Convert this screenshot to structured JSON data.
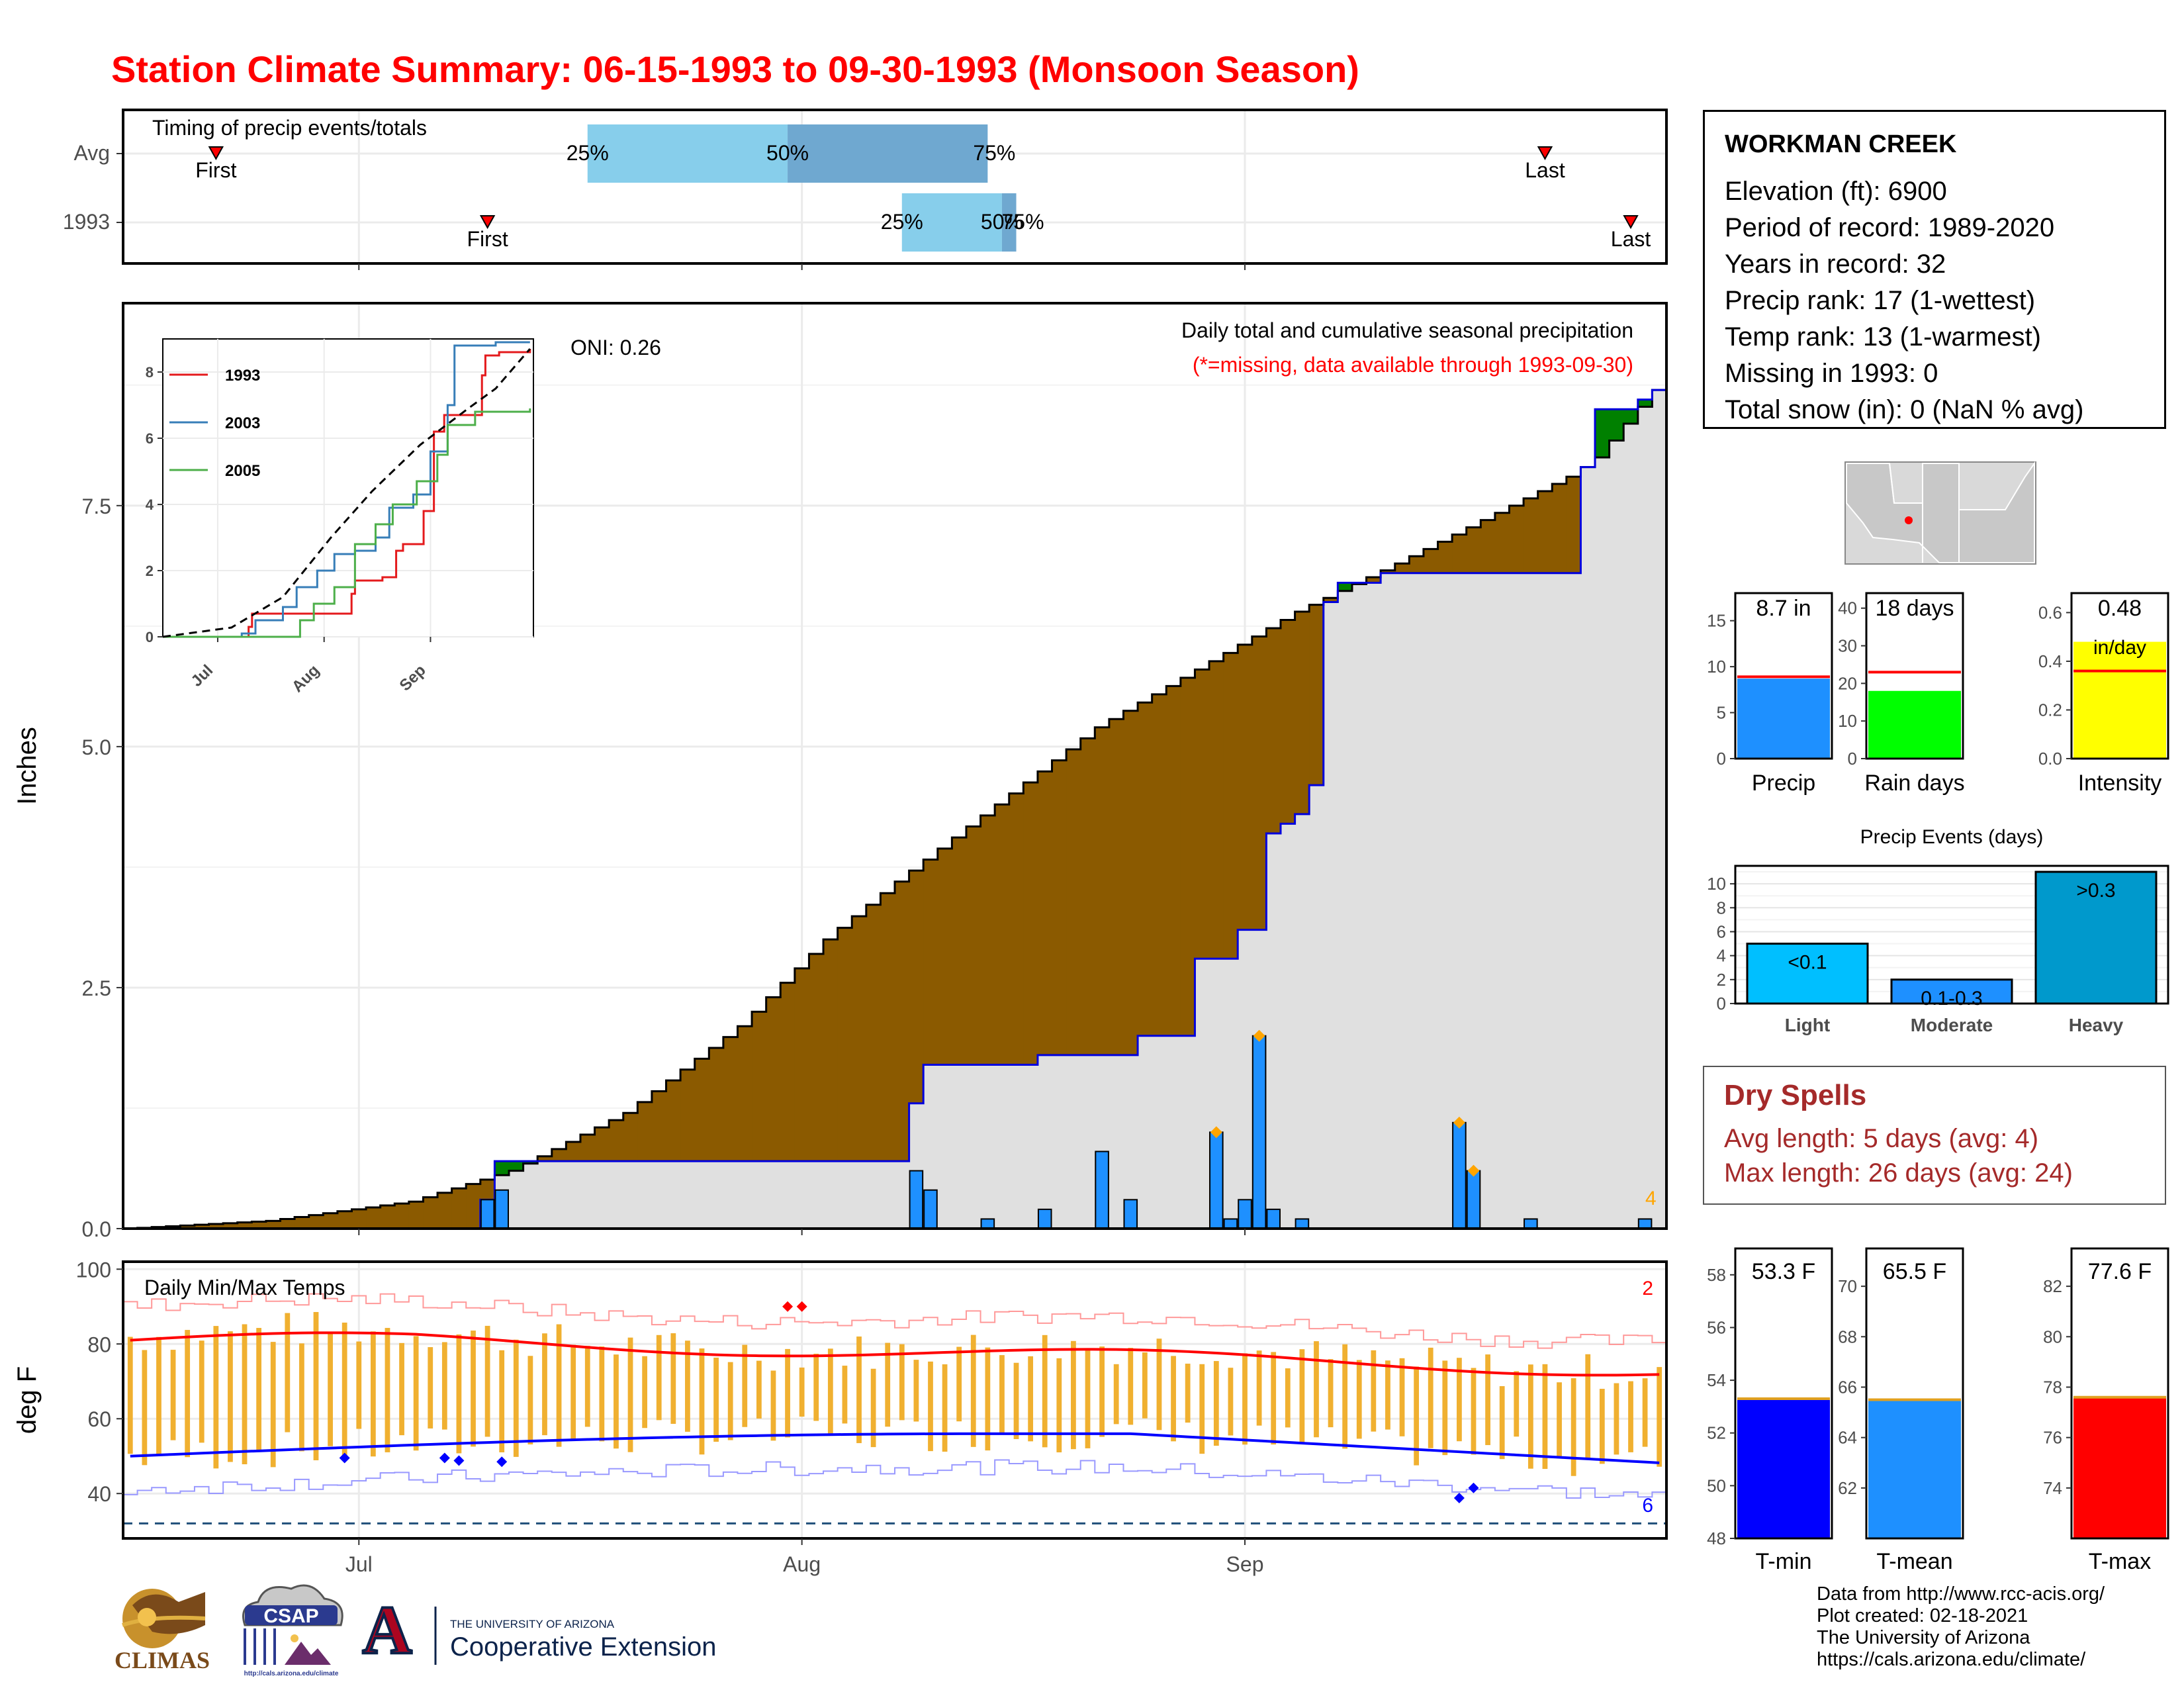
{
  "title": "Station Climate Summary: 06-15-1993 to 09-30-1993 (Monsoon Season)",
  "station": {
    "name": "WORKMAN CREEK",
    "lines": [
      "Elevation (ft): 6900",
      "Period of record: 1989-2020",
      "Years in record: 32",
      "Precip rank: 17 (1-wettest)",
      "Temp rank: 13 (1-warmest)",
      "Missing in 1993: 0",
      "Total snow (in): 0 (NaN % avg)"
    ]
  },
  "colors": {
    "title": "#ff0000",
    "above_avg_fill": "#008000",
    "below_avg_fill": "#8b5a00",
    "cum_area": "#e0e0e0",
    "daily_bar": "#1e90ff",
    "temp_bar": "#f0b030",
    "avg_max": "#ff0000",
    "avg_min": "#0000ff",
    "quartile_light": "#87ceeb",
    "quartile_dark": "#6fa8d0",
    "dry_spell": "#a52a2a"
  },
  "dry_spells": {
    "title": "Dry Spells",
    "avg": "Avg length: 5 days (avg: 4)",
    "max": "Max length: 26 days (avg: 24)"
  },
  "credits": [
    "Data from http://www.rcc-acis.org/",
    "Plot created: 02-18-2021",
    "The University of Arizona",
    "https://cals.arizona.edu/climate/"
  ],
  "logos": {
    "climas": "CLIMAS",
    "csap": "CSAP",
    "csap_url": "http://cals.arizona.edu/climate",
    "ua_line1": "THE UNIVERSITY OF ARIZONA",
    "ua_line2": "Cooperative Extension",
    "ua_letter": "A"
  },
  "chart_data": [
    {
      "name": "timing",
      "type": "bar",
      "title": "Timing of precip events/totals",
      "categories": [
        "Avg",
        "1993"
      ],
      "x_ticks": [
        "Jul",
        "Aug",
        "Sep"
      ],
      "rows": [
        {
          "label": "Avg",
          "first_label": "First",
          "last_label": "Last",
          "first": "1993-06-21",
          "q25": "1993-07-17",
          "q50": "1993-07-31",
          "q75": "1993-08-14",
          "last": "1993-09-22"
        },
        {
          "label": "1993",
          "first_label": "First",
          "last_label": "Last",
          "first": "1993-07-10",
          "q25": "1993-08-08",
          "q50": "1993-08-15",
          "q75": "1993-08-16",
          "last": "1993-09-28"
        }
      ],
      "quartile_labels": [
        "25%",
        "50%",
        "75%"
      ]
    },
    {
      "name": "precip",
      "type": "area",
      "title": "Daily total and cumulative seasonal precipitation",
      "subtitle": "(*=missing, data available through 1993-09-30)",
      "annotation": "ONI: 0.26",
      "ylabel": "Inches",
      "ylim": [
        0,
        9.6
      ],
      "y_ticks": [
        0.0,
        2.5,
        5.0,
        7.5
      ],
      "y_tick_labels": [
        "0.0",
        "2.5",
        "5.0",
        "7.5"
      ],
      "x_ticks": [
        "Jul",
        "Aug",
        "Sep"
      ],
      "corner_count": "4",
      "cumulative_1993": [
        [
          "1993-06-15",
          0
        ],
        [
          "1993-07-09",
          0
        ],
        [
          "1993-07-10",
          0.3
        ],
        [
          "1993-07-11",
          0.7
        ],
        [
          "1993-08-08",
          0.7
        ],
        [
          "1993-08-09",
          1.3
        ],
        [
          "1993-08-10",
          1.7
        ],
        [
          "1993-08-17",
          1.7
        ],
        [
          "1993-08-18",
          1.8
        ],
        [
          "1993-08-24",
          1.8
        ],
        [
          "1993-08-25",
          2.0
        ],
        [
          "1993-08-28",
          2.0
        ],
        [
          "1993-08-29",
          2.8
        ],
        [
          "1993-08-31",
          2.8
        ],
        [
          "1993-09-01",
          3.1
        ],
        [
          "1993-09-02",
          3.1
        ],
        [
          "1993-09-03",
          4.1
        ],
        [
          "1993-09-04",
          4.2
        ],
        [
          "1993-09-05",
          4.3
        ],
        [
          "1993-09-06",
          4.6
        ],
        [
          "1993-09-07",
          6.5
        ],
        [
          "1993-09-08",
          6.7
        ],
        [
          "1993-09-10",
          6.7
        ],
        [
          "1993-09-11",
          6.8
        ],
        [
          "1993-09-24",
          6.8
        ],
        [
          "1993-09-25",
          7.9
        ],
        [
          "1993-09-26",
          8.5
        ],
        [
          "1993-09-28",
          8.5
        ],
        [
          "1993-09-29",
          8.6
        ],
        [
          "1993-09-30",
          8.7
        ]
      ],
      "average_cumulative": [
        [
          "1993-06-15",
          0.0
        ],
        [
          "1993-06-25",
          0.08
        ],
        [
          "1993-07-05",
          0.28
        ],
        [
          "1993-07-12",
          0.6
        ],
        [
          "1993-07-20",
          1.2
        ],
        [
          "1993-07-28",
          2.1
        ],
        [
          "1993-08-03",
          3.0
        ],
        [
          "1993-08-08",
          3.6
        ],
        [
          "1993-08-15",
          4.4
        ],
        [
          "1993-08-22",
          5.2
        ],
        [
          "1993-08-29",
          5.8
        ],
        [
          "1993-09-05",
          6.4
        ],
        [
          "1993-09-12",
          6.9
        ],
        [
          "1993-09-20",
          7.5
        ],
        [
          "1993-09-24",
          7.8
        ],
        [
          "1993-09-26",
          8.0
        ],
        [
          "1993-09-30",
          8.7
        ]
      ],
      "daily_1993": [
        [
          "1993-07-10",
          0.3
        ],
        [
          "1993-07-11",
          0.4
        ],
        [
          "1993-08-09",
          0.6
        ],
        [
          "1993-08-10",
          0.4
        ],
        [
          "1993-08-14",
          0.1
        ],
        [
          "1993-08-18",
          0.2
        ],
        [
          "1993-08-22",
          0.8
        ],
        [
          "1993-08-24",
          0.3
        ],
        [
          "1993-08-30",
          1.0
        ],
        [
          "1993-08-31",
          0.1
        ],
        [
          "1993-09-01",
          0.3
        ],
        [
          "1993-09-02",
          2.0
        ],
        [
          "1993-09-03",
          0.2
        ],
        [
          "1993-09-05",
          0.1
        ],
        [
          "1993-09-16",
          1.1
        ],
        [
          "1993-09-17",
          0.6
        ],
        [
          "1993-09-21",
          0.1
        ],
        [
          "1993-09-29",
          0.1
        ]
      ],
      "record_day_markers": [
        "1993-08-30",
        "1993-09-02",
        "1993-09-16",
        "1993-09-17"
      ]
    },
    {
      "name": "inset",
      "type": "line",
      "x_ticks": [
        "Jul",
        "Aug",
        "Sep"
      ],
      "y_ticks": [
        0,
        2,
        4,
        6,
        8
      ],
      "ylim": [
        0,
        9
      ],
      "series": [
        {
          "name": "1993",
          "color": "#e41a1c",
          "values": [
            [
              "1993-06-15",
              0
            ],
            [
              "1993-07-10",
              0.3
            ],
            [
              "1993-07-11",
              0.7
            ],
            [
              "1993-08-09",
              1.3
            ],
            [
              "1993-08-10",
              1.7
            ],
            [
              "1993-08-18",
              1.8
            ],
            [
              "1993-08-22",
              2.6
            ],
            [
              "1993-08-24",
              2.8
            ],
            [
              "1993-08-30",
              3.8
            ],
            [
              "1993-09-02",
              6.2
            ],
            [
              "1993-09-05",
              6.7
            ],
            [
              "1993-09-16",
              7.9
            ],
            [
              "1993-09-17",
              8.5
            ],
            [
              "1993-09-21",
              8.6
            ],
            [
              "1993-09-30",
              8.7
            ]
          ]
        },
        {
          "name": "2003",
          "color": "#377eb8",
          "values": [
            [
              "1993-06-15",
              0
            ],
            [
              "1993-07-08",
              0.1
            ],
            [
              "1993-07-12",
              0.5
            ],
            [
              "1993-07-20",
              0.9
            ],
            [
              "1993-07-24",
              1.5
            ],
            [
              "1993-07-30",
              2.0
            ],
            [
              "1993-08-04",
              2.5
            ],
            [
              "1993-08-10",
              2.6
            ],
            [
              "1993-08-16",
              3.0
            ],
            [
              "1993-08-20",
              3.9
            ],
            [
              "1993-08-27",
              4.3
            ],
            [
              "1993-09-01",
              5.6
            ],
            [
              "1993-09-06",
              7.0
            ],
            [
              "1993-09-08",
              8.8
            ],
            [
              "1993-09-16",
              8.8
            ],
            [
              "1993-09-20",
              8.9
            ],
            [
              "1993-09-30",
              8.9
            ]
          ]
        },
        {
          "name": "2005",
          "color": "#4daf4a",
          "values": [
            [
              "1993-06-15",
              0
            ],
            [
              "1993-07-22",
              0
            ],
            [
              "1993-07-25",
              0.5
            ],
            [
              "1993-07-29",
              1.0
            ],
            [
              "1993-08-04",
              1.5
            ],
            [
              "1993-08-10",
              2.8
            ],
            [
              "1993-08-16",
              3.4
            ],
            [
              "1993-08-21",
              4.0
            ],
            [
              "1993-08-28",
              4.7
            ],
            [
              "1993-09-03",
              5.5
            ],
            [
              "1993-09-06",
              6.4
            ],
            [
              "1993-09-14",
              6.8
            ],
            [
              "1993-09-30",
              6.9
            ]
          ]
        },
        {
          "name": "Average",
          "color": "#000000",
          "values": [
            [
              "1993-06-15",
              0.0
            ],
            [
              "1993-07-05",
              0.28
            ],
            [
              "1993-07-20",
              1.2
            ],
            [
              "1993-08-03",
              3.0
            ],
            [
              "1993-08-15",
              4.4
            ],
            [
              "1993-08-29",
              5.8
            ],
            [
              "1993-09-12",
              6.9
            ],
            [
              "1993-09-20",
              7.5
            ],
            [
              "1993-09-30",
              8.7
            ]
          ]
        }
      ]
    },
    {
      "name": "temps",
      "type": "bar",
      "title": "Daily Min/Max Temps",
      "ylabel": "deg F",
      "ylim": [
        28,
        102
      ],
      "y_ticks": [
        40,
        60,
        80,
        100
      ],
      "x_ticks": [
        "Jul",
        "Aug",
        "Sep"
      ],
      "record_high_count": "2",
      "record_low_count": "6",
      "freezing_line": 32
    },
    {
      "name": "season_totals",
      "type": "bar",
      "panels": [
        {
          "label": "Precip",
          "value": 8.7,
          "value_label": "8.7 in",
          "avg": 8.9,
          "ylim": [
            0,
            18
          ],
          "ticks": [
            0,
            5,
            10,
            15
          ],
          "color": "#1e90ff"
        },
        {
          "label": "Rain days",
          "value": 18,
          "value_label": "18 days",
          "avg": 23,
          "ylim": [
            0,
            44
          ],
          "ticks": [
            0,
            10,
            20,
            30,
            40
          ],
          "color": "#00ff00"
        },
        {
          "label": "Intensity",
          "value": 0.48,
          "value_label": "0.48",
          "value_unit": "in/day",
          "avg": 0.36,
          "ylim": [
            0,
            0.68
          ],
          "ticks": [
            "0.0",
            "0.2",
            "0.4",
            "0.6"
          ],
          "color": "#ffff00"
        }
      ]
    },
    {
      "name": "precip_events",
      "type": "bar",
      "title": "Precip Events (days)",
      "categories": [
        "Light",
        "Moderate",
        "Heavy"
      ],
      "values": [
        5,
        2,
        11
      ],
      "bar_labels": [
        "<0.1",
        "0.1-0.3",
        ">0.3"
      ],
      "ylim": [
        0,
        11.5
      ],
      "y_ticks": [
        0,
        2,
        4,
        6,
        8,
        10
      ]
    },
    {
      "name": "temp_summary",
      "type": "bar",
      "panels": [
        {
          "label": "T-min",
          "value": 53.3,
          "value_label": "53.3 F",
          "ylim": [
            48,
            59
          ],
          "ticks": [
            48,
            50,
            52,
            54,
            56,
            58
          ],
          "color": "#0000ff"
        },
        {
          "label": "T-mean",
          "value": 65.5,
          "value_label": "65.5 F",
          "ylim": [
            60,
            71.5
          ],
          "ticks": [
            62,
            64,
            66,
            68,
            70
          ],
          "color": "#1e90ff"
        },
        {
          "label": "T-max",
          "value": 77.6,
          "value_label": "77.6 F",
          "ylim": [
            72,
            83.5
          ],
          "ticks": [
            74,
            76,
            78,
            80,
            82
          ],
          "color": "#ff0000"
        }
      ]
    }
  ]
}
